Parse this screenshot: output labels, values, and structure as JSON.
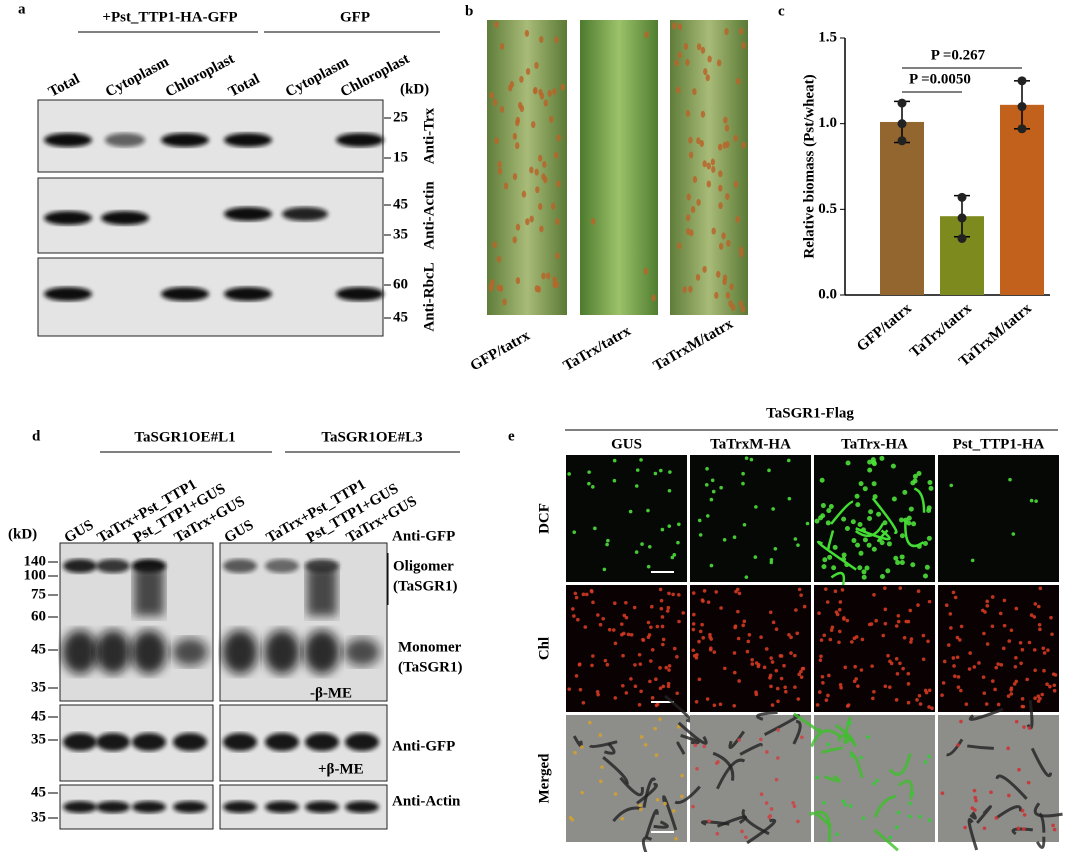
{
  "panel_a": {
    "letter": "a",
    "group_labels": [
      "+Pst_TTP1-HA-GFP",
      "GFP"
    ],
    "lanes": [
      "Total",
      "Cytoplasm",
      "Chloroplast",
      "Total",
      "Cytoplasm",
      "Chloroplast"
    ],
    "unit": "(kD)",
    "markers": [
      [
        25,
        15
      ],
      [
        45,
        35
      ],
      [
        60,
        45
      ]
    ],
    "antibodies": [
      "Anti-Trx",
      "Anti-Actin",
      "Anti-RbcL"
    ]
  },
  "panel_b": {
    "letter": "b",
    "labels": [
      "GFP/tatrx",
      "TaTrx/tatrx",
      "TaTrxM/tatrx"
    ]
  },
  "panel_c": {
    "letter": "c"
  },
  "chart_data": {
    "type": "bar",
    "ylabel": "Relative biomass (Pst/wheat)",
    "categories": [
      "GFP/tatrx",
      "TaTrx/tatrx",
      "TaTrxM/tatrx"
    ],
    "values": [
      1.01,
      0.46,
      1.11
    ],
    "errors": [
      0.12,
      0.12,
      0.14
    ],
    "points": [
      [
        1.12,
        1.0,
        0.9
      ],
      [
        0.57,
        0.45,
        0.33
      ],
      [
        1.25,
        1.1,
        0.97
      ]
    ],
    "colors": [
      "#93652f",
      "#7d8a1e",
      "#c2611c"
    ],
    "ylim": [
      0,
      1.5
    ],
    "yticks": [
      {
        "value": 0,
        "label": "0.0"
      },
      0.5,
      {
        "value": 1,
        "label": "1.0"
      },
      1.5
    ],
    "annotations": [
      "P =0.267",
      "P =0.0050"
    ]
  },
  "panel_d": {
    "letter": "d",
    "groups": [
      "TaSGR1OE#L1",
      "TaSGR1OE#L3"
    ],
    "lanes": [
      "GUS",
      "TaTrx+Pst_TTP1",
      "Pst_TTP1+GUS",
      "TaTrx+GUS"
    ],
    "unit": "(kD)",
    "markers_top": [
      140,
      100,
      75,
      60,
      45,
      35
    ],
    "markers_mid": [
      45,
      35
    ],
    "markers_bottom": [
      45,
      35
    ],
    "labels": [
      "Anti-GFP",
      "Oligomer",
      "(TaSGR1)",
      "Monomer",
      "(TaSGR1)",
      "-β-ME",
      "Anti-GFP",
      "+β-ME",
      "Anti-Actin"
    ]
  },
  "panel_e": {
    "letter": "e",
    "title": "TaSGR1-Flag",
    "columns": [
      "GUS",
      "TaTrxM-HA",
      "TaTrx-HA",
      "Pst_TTP1-HA"
    ],
    "rows": [
      "DCF",
      "Chl",
      "Merged"
    ]
  }
}
